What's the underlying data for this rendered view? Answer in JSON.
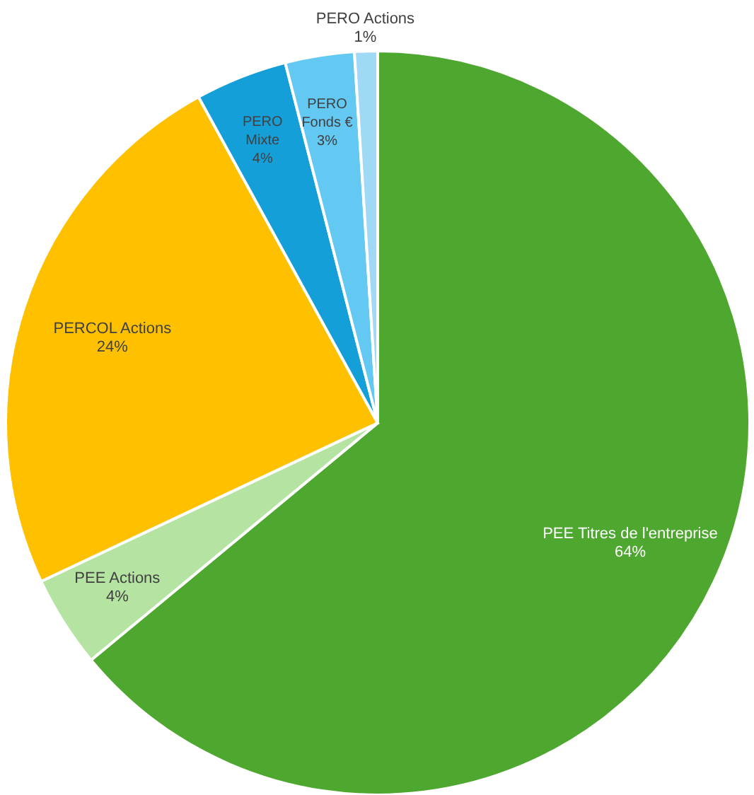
{
  "chart_data": {
    "type": "pie",
    "categories": [
      "PEE Titres de l'entreprise",
      "PEE Actions",
      "PERCOL Actions",
      "PERO Mixte",
      "PERO Fonds €",
      "PERO Actions"
    ],
    "values": [
      64,
      4,
      24,
      4,
      3,
      1
    ],
    "colors": [
      "#4ea72e",
      "#b5e3a1",
      "#ffc000",
      "#159fd8",
      "#63c8f2",
      "#9fd9f6"
    ],
    "value_labels": [
      "64%",
      "4%",
      "24%",
      "4%",
      "3%",
      "1%"
    ]
  }
}
